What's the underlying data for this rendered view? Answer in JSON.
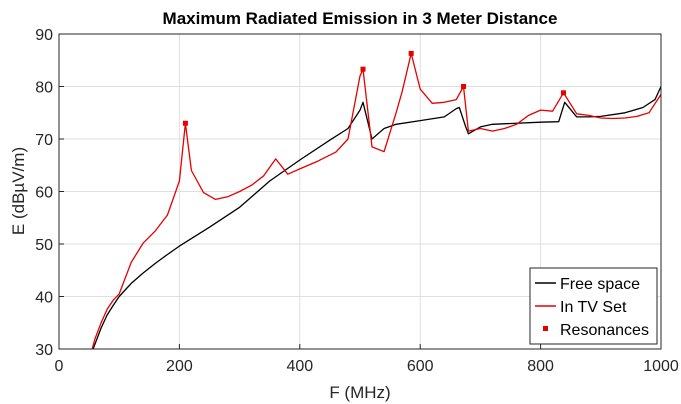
{
  "chart_data": {
    "type": "line",
    "title": "Maximum Radiated Emission in 3 Meter Distance",
    "xlabel": "F (MHz)",
    "ylabel": "E (dBµV/m)",
    "xlim": [
      0,
      1000
    ],
    "ylim": [
      30,
      90
    ],
    "xticks": [
      0,
      200,
      400,
      600,
      800,
      1000
    ],
    "yticks": [
      30,
      40,
      50,
      60,
      70,
      80,
      90
    ],
    "grid": true,
    "legend_position": "bottom-right",
    "series": [
      {
        "name": "Free space",
        "color": "#000000",
        "style": "line",
        "points": [
          [
            55,
            29.5
          ],
          [
            60,
            31
          ],
          [
            70,
            34
          ],
          [
            80,
            36.5
          ],
          [
            90,
            38.3
          ],
          [
            100,
            40
          ],
          [
            120,
            42.5
          ],
          [
            140,
            44.5
          ],
          [
            160,
            46.3
          ],
          [
            180,
            48
          ],
          [
            200,
            49.6
          ],
          [
            250,
            53.2
          ],
          [
            300,
            57
          ],
          [
            350,
            62
          ],
          [
            400,
            66
          ],
          [
            450,
            69.8
          ],
          [
            480,
            72
          ],
          [
            500,
            75.5
          ],
          [
            505,
            77
          ],
          [
            520,
            70
          ],
          [
            540,
            72
          ],
          [
            560,
            72.8
          ],
          [
            600,
            73.5
          ],
          [
            640,
            74.2
          ],
          [
            660,
            75.8
          ],
          [
            665,
            76
          ],
          [
            675,
            72.5
          ],
          [
            680,
            71
          ],
          [
            700,
            72.3
          ],
          [
            720,
            72.8
          ],
          [
            800,
            73.2
          ],
          [
            830,
            73.3
          ],
          [
            840,
            77
          ],
          [
            860,
            74.2
          ],
          [
            880,
            74.2
          ],
          [
            900,
            74.3
          ],
          [
            940,
            75
          ],
          [
            970,
            76
          ],
          [
            990,
            77.5
          ],
          [
            1000,
            80
          ]
        ]
      },
      {
        "name": "In TV Set",
        "color": "#e60000",
        "style": "line",
        "points": [
          [
            55,
            30
          ],
          [
            60,
            32
          ],
          [
            70,
            35
          ],
          [
            80,
            37.6
          ],
          [
            90,
            39.3
          ],
          [
            100,
            40.5
          ],
          [
            120,
            46.5
          ],
          [
            140,
            50.2
          ],
          [
            160,
            52.5
          ],
          [
            180,
            55.5
          ],
          [
            200,
            62
          ],
          [
            210,
            73
          ],
          [
            220,
            64
          ],
          [
            240,
            59.8
          ],
          [
            260,
            58.5
          ],
          [
            280,
            59
          ],
          [
            300,
            60
          ],
          [
            320,
            61.2
          ],
          [
            340,
            63
          ],
          [
            360,
            66.2
          ],
          [
            380,
            63.3
          ],
          [
            400,
            64.3
          ],
          [
            430,
            65.8
          ],
          [
            460,
            67.5
          ],
          [
            480,
            70
          ],
          [
            500,
            82
          ],
          [
            505,
            83.3
          ],
          [
            520,
            68.5
          ],
          [
            540,
            67.6
          ],
          [
            560,
            75
          ],
          [
            570,
            79
          ],
          [
            585,
            86.3
          ],
          [
            600,
            79.5
          ],
          [
            620,
            76.8
          ],
          [
            640,
            77
          ],
          [
            660,
            77.5
          ],
          [
            672,
            80
          ],
          [
            680,
            71.5
          ],
          [
            700,
            72
          ],
          [
            720,
            71.5
          ],
          [
            740,
            72
          ],
          [
            760,
            72.8
          ],
          [
            780,
            74.5
          ],
          [
            800,
            75.5
          ],
          [
            820,
            75.3
          ],
          [
            838,
            78.8
          ],
          [
            860,
            74.8
          ],
          [
            880,
            74.5
          ],
          [
            900,
            74
          ],
          [
            920,
            73.9
          ],
          [
            940,
            74
          ],
          [
            960,
            74.3
          ],
          [
            980,
            75
          ],
          [
            1000,
            78.5
          ]
        ]
      },
      {
        "name": "Resonances",
        "color": "#e60000",
        "style": "marker",
        "points": [
          [
            210,
            73
          ],
          [
            505,
            83.3
          ],
          [
            585,
            86.3
          ],
          [
            672,
            80
          ],
          [
            838,
            78.8
          ]
        ]
      }
    ]
  }
}
